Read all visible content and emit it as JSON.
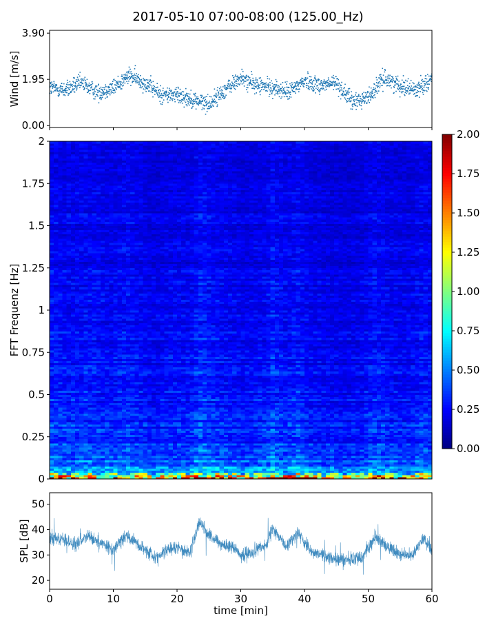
{
  "title": "2017-05-10 07:00-08:00 (125.00_Hz)",
  "chart_data": [
    {
      "type": "scatter",
      "ylabel": "Wind [m/s]",
      "xlabel": "",
      "ylim": [
        0,
        3.9
      ],
      "xlim": [
        0,
        60
      ],
      "yticks": [
        "0.00",
        "1.95",
        "3.90"
      ],
      "yticks_values": [
        0,
        1.95,
        3.9
      ],
      "color": "#1f77b4",
      "n_points": 1800,
      "series": [
        {
          "x": [
            0,
            2.5,
            5,
            7.5,
            10,
            12.5,
            15,
            17.5,
            20,
            22.5,
            25,
            27.5,
            30,
            32.5,
            35,
            37.5,
            40,
            42.5,
            45,
            47.5,
            50,
            52.5,
            55,
            57.5,
            60
          ],
          "values": [
            1.6,
            1.5,
            1.8,
            1.4,
            1.6,
            2.1,
            1.8,
            1.3,
            1.3,
            1.1,
            0.9,
            1.5,
            2.0,
            1.7,
            1.6,
            1.4,
            1.9,
            1.7,
            1.8,
            1.0,
            1.2,
            2.0,
            1.7,
            1.5,
            2.0
          ]
        }
      ]
    },
    {
      "type": "heatmap",
      "ylabel": "FFT Frequenz [Hz]",
      "xlabel": "",
      "ylim": [
        0,
        2
      ],
      "xlim": [
        0,
        60
      ],
      "yticks": [
        "0",
        "0.25",
        "0.5",
        "0.75",
        "1",
        "1.25",
        "1.5",
        "1.75",
        "2"
      ],
      "yticks_values": [
        0,
        0.25,
        0.5,
        0.75,
        1,
        1.25,
        1.5,
        1.75,
        2
      ],
      "colormap": "jet",
      "clim": [
        0,
        2
      ],
      "colorbar_ticks": [
        "0.00",
        "0.25",
        "0.50",
        "0.75",
        "1.00",
        "1.25",
        "1.50",
        "1.75",
        "2.00"
      ],
      "colorbar_values": [
        0,
        0.25,
        0.5,
        0.75,
        1,
        1.25,
        1.5,
        1.75,
        2
      ],
      "time_bins": 90,
      "freq_bins": 160,
      "mean_profile_by_freq": {
        "freqs": [
          0,
          0.03,
          0.06,
          0.1,
          0.25,
          0.5,
          0.75,
          1.0,
          1.5,
          2.0
        ],
        "values": [
          1.6,
          0.9,
          0.55,
          0.42,
          0.34,
          0.29,
          0.26,
          0.24,
          0.22,
          0.2
        ]
      }
    },
    {
      "type": "line",
      "ylabel": "SPL [dB]",
      "xlabel": "time [min]",
      "ylim": [
        16.5,
        54.5
      ],
      "xlim": [
        0,
        60
      ],
      "yticks": [
        "20",
        "30",
        "40",
        "50"
      ],
      "yticks_values": [
        20,
        30,
        40,
        50
      ],
      "xticks": [
        "0",
        "10",
        "20",
        "30",
        "40",
        "50",
        "60"
      ],
      "xticks_values": [
        0,
        10,
        20,
        30,
        40,
        50,
        60
      ],
      "color": "#1f77b4",
      "series": [
        {
          "x": [
            0,
            2,
            4,
            6,
            8,
            10,
            12,
            14,
            16,
            17,
            18,
            20,
            22,
            23.5,
            25,
            27,
            29,
            30,
            32,
            34,
            35,
            37,
            39,
            41,
            43,
            45,
            47,
            49,
            51,
            53,
            55,
            57,
            58.5,
            60
          ],
          "values": [
            37,
            36,
            34,
            37,
            35,
            32,
            38,
            34,
            30,
            29,
            32,
            33,
            31,
            43,
            38,
            34,
            33,
            30,
            31,
            34,
            41,
            33,
            39,
            31,
            30,
            28,
            28,
            29,
            37,
            33,
            30,
            30,
            37,
            32
          ]
        }
      ]
    }
  ]
}
